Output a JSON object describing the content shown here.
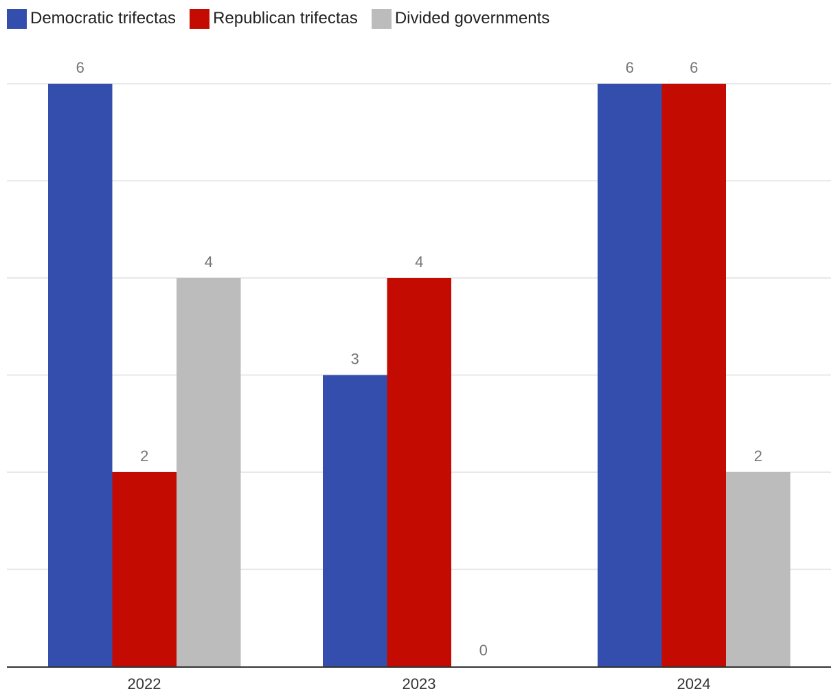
{
  "chart_data": {
    "type": "bar",
    "categories": [
      "2022",
      "2023",
      "2024"
    ],
    "series": [
      {
        "name": "Democratic trifectas",
        "values": [
          6,
          3,
          6
        ],
        "color": "#344ead"
      },
      {
        "name": "Republican trifectas",
        "values": [
          2,
          4,
          6
        ],
        "color": "#c30b02"
      },
      {
        "name": "Divided governments",
        "values": [
          4,
          0,
          2
        ],
        "color": "#bcbcbc"
      }
    ],
    "title": "",
    "xlabel": "",
    "ylabel": "",
    "ylim": [
      0,
      6
    ],
    "grid": true,
    "legend": "top-left",
    "data_labels": true,
    "y_tick_labels_shown": false
  }
}
